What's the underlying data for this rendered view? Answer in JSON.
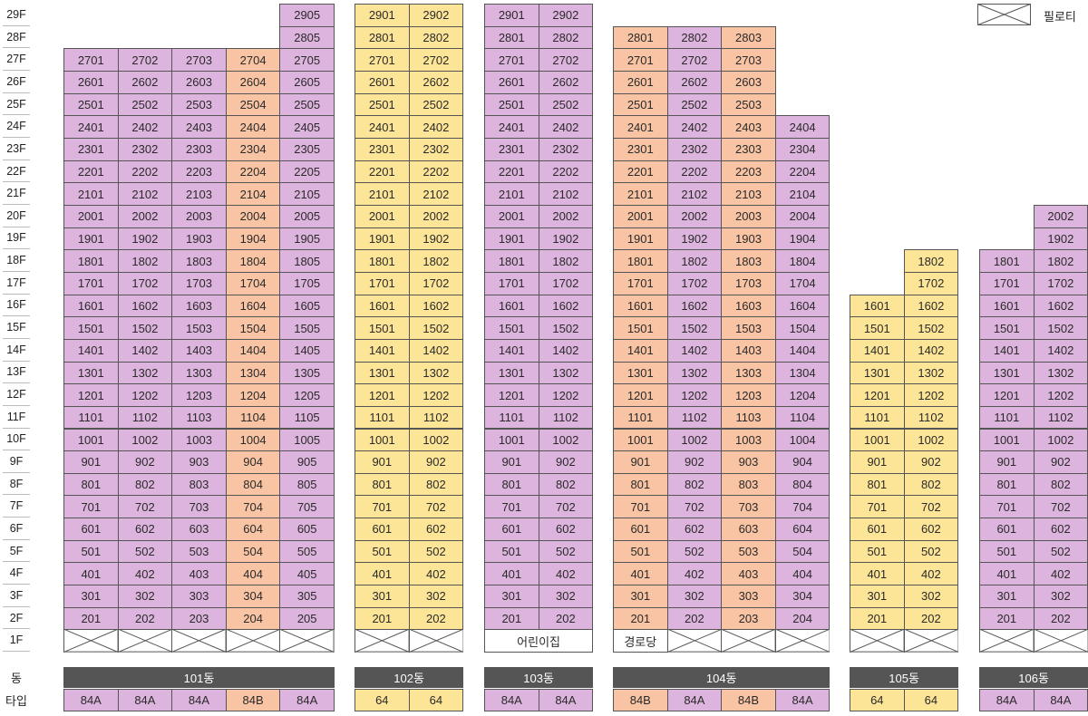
{
  "floor_labels": [
    "1F",
    "2F",
    "3F",
    "4F",
    "5F",
    "6F",
    "7F",
    "8F",
    "9F",
    "10F",
    "11F",
    "12F",
    "13F",
    "14F",
    "15F",
    "16F",
    "17F",
    "18F",
    "19F",
    "20F",
    "21F",
    "22F",
    "23F",
    "24F",
    "25F",
    "26F",
    "27F",
    "28F",
    "29F"
  ],
  "row_labels": {
    "building": "동",
    "type": "타입"
  },
  "legend": {
    "label": "필로티"
  },
  "colors": {
    "84A": "#ddb4dd",
    "84B": "#f9c4a4",
    "64": "#fde598",
    "border": "#555555",
    "bar": "#555555",
    "line": "#bbbbbb"
  },
  "buildings": [
    {
      "name": "101동",
      "columns": [
        {
          "line": 1,
          "type": "84A",
          "top_floor": 27
        },
        {
          "line": 2,
          "type": "84A",
          "top_floor": 27
        },
        {
          "line": 3,
          "type": "84A",
          "top_floor": 27
        },
        {
          "line": 4,
          "type": "84B",
          "top_floor": 27
        },
        {
          "line": 5,
          "type": "84A",
          "top_floor": 29
        }
      ],
      "ground_floor": [
        "piloti",
        "piloti",
        "piloti",
        "piloti",
        "piloti"
      ]
    },
    {
      "name": "102동",
      "columns": [
        {
          "line": 1,
          "type": "64",
          "top_floor": 29
        },
        {
          "line": 2,
          "type": "64",
          "top_floor": 29
        }
      ],
      "ground_floor": [
        "piloti",
        "piloti"
      ]
    },
    {
      "name": "103동",
      "columns": [
        {
          "line": 1,
          "type": "84A",
          "top_floor": 29
        },
        {
          "line": 2,
          "type": "84A",
          "top_floor": 29
        }
      ],
      "ground_floor": [
        "어린이집"
      ]
    },
    {
      "name": "104동",
      "columns": [
        {
          "line": 1,
          "type": "84B",
          "top_floor": 28
        },
        {
          "line": 2,
          "type": "84A",
          "top_floor": 28
        },
        {
          "line": 3,
          "type": "84B",
          "top_floor": 28
        },
        {
          "line": 4,
          "type": "84A",
          "top_floor": 24
        }
      ],
      "ground_floor": [
        "경로당",
        "piloti",
        "piloti",
        "piloti"
      ]
    },
    {
      "name": "105동",
      "columns": [
        {
          "line": 1,
          "type": "64",
          "top_floor": 16
        },
        {
          "line": 2,
          "type": "64",
          "top_floor": 18
        }
      ],
      "ground_floor": [
        "piloti",
        "piloti"
      ]
    },
    {
      "name": "106동",
      "columns": [
        {
          "line": 1,
          "type": "84A",
          "top_floor": 18
        },
        {
          "line": 2,
          "type": "84A",
          "top_floor": 20
        }
      ],
      "ground_floor": [
        "piloti",
        "piloti"
      ]
    }
  ]
}
